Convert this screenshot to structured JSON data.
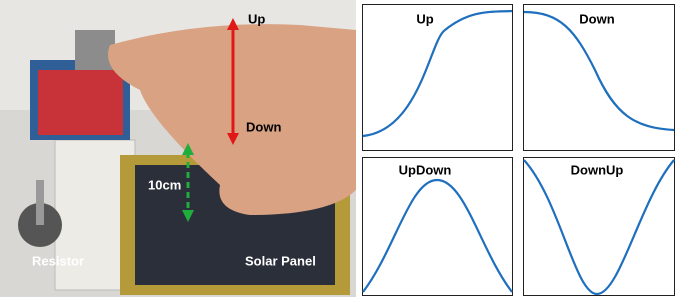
{
  "photo": {
    "labels": {
      "up": "Up",
      "down": "Down",
      "distance": "10cm",
      "resistor": "Resistor",
      "solar_panel": "Solar Panel"
    }
  },
  "plots": [
    {
      "title": "Up"
    },
    {
      "title": "Down"
    },
    {
      "title": "UpDown"
    },
    {
      "title": "DownUp"
    }
  ]
}
